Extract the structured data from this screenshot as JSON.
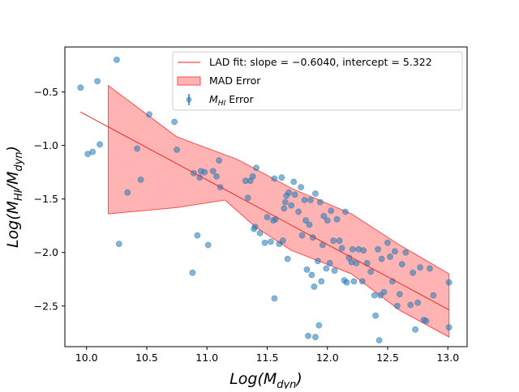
{
  "chart_data": {
    "type": "scatter",
    "title": "",
    "xlabel": "Log(M_dyn)",
    "ylabel": "Log(M_HI/M_dyn)",
    "xlim": [
      9.82,
      13.16
    ],
    "ylim": [
      -2.88,
      -0.08
    ],
    "xticks": [
      10.0,
      10.5,
      11.0,
      11.5,
      12.0,
      12.5,
      13.0
    ],
    "yticks": [
      -2.5,
      -2.0,
      -1.5,
      -1.0,
      -0.5
    ],
    "xtick_labels": [
      "10.0",
      "10.5",
      "11.0",
      "11.5",
      "12.0",
      "12.5",
      "13.0"
    ],
    "ytick_labels": [
      "−2.5",
      "−2.0",
      "−1.5",
      "−1.0",
      "−0.5"
    ],
    "grid": false,
    "legend_position": "top-right",
    "legend": {
      "fit_label": "LAD fit: slope = −0.6040, intercept = 5.322",
      "band_label": "MAD Error",
      "points_label_prefix": "M",
      "points_label_sub": "HI",
      "points_label_suffix": " Error"
    },
    "colors": {
      "points": "#1f77b4",
      "fit_line": "#e8231e",
      "band_fill": "#ff9a9a",
      "band_edge": "#ff4d4d"
    },
    "fit": {
      "slope": -0.604,
      "intercept": 5.322,
      "x_range": [
        9.95,
        13.01
      ]
    },
    "band": {
      "upper": [
        [
          10.18,
          -0.44
        ],
        [
          10.75,
          -0.92
        ],
        [
          11.25,
          -1.13
        ],
        [
          11.7,
          -1.4
        ],
        [
          12.2,
          -1.64
        ],
        [
          12.6,
          -1.93
        ],
        [
          13.01,
          -2.2
        ]
      ],
      "lower": [
        [
          13.01,
          -2.79
        ],
        [
          12.6,
          -2.54
        ],
        [
          12.2,
          -2.2
        ],
        [
          11.7,
          -1.98
        ],
        [
          11.4,
          -1.76
        ],
        [
          11.15,
          -1.51
        ],
        [
          10.75,
          -1.58
        ],
        [
          10.18,
          -1.64
        ]
      ]
    },
    "series": [
      {
        "name": "M_HI Error",
        "points": [
          [
            9.95,
            -0.46
          ],
          [
            10.01,
            -1.08
          ],
          [
            10.05,
            -1.06
          ],
          [
            10.09,
            -0.4
          ],
          [
            10.11,
            -0.99
          ],
          [
            10.25,
            -0.2
          ],
          [
            10.27,
            -1.92
          ],
          [
            10.34,
            -1.44
          ],
          [
            10.42,
            -1.03
          ],
          [
            10.45,
            -1.32
          ],
          [
            10.52,
            -0.71
          ],
          [
            10.73,
            -0.78
          ],
          [
            10.75,
            -1.04
          ],
          [
            10.88,
            -2.19
          ],
          [
            10.89,
            -1.26
          ],
          [
            10.92,
            -1.84
          ],
          [
            10.94,
            -1.3
          ],
          [
            10.95,
            -1.24
          ],
          [
            10.98,
            -1.25
          ],
          [
            11.01,
            -1.93
          ],
          [
            11.05,
            -1.24
          ],
          [
            11.08,
            -1.29
          ],
          [
            11.1,
            -1.14
          ],
          [
            11.11,
            -1.39
          ],
          [
            11.32,
            -1.33
          ],
          [
            11.34,
            -1.49
          ],
          [
            11.36,
            -1.33
          ],
          [
            11.38,
            -1.29
          ],
          [
            11.39,
            -1.78
          ],
          [
            11.4,
            -1.76
          ],
          [
            11.41,
            -1.21
          ],
          [
            11.44,
            -1.82
          ],
          [
            11.48,
            -1.91
          ],
          [
            11.5,
            -1.67
          ],
          [
            11.53,
            -1.9
          ],
          [
            11.55,
            -1.7
          ],
          [
            11.56,
            -1.31
          ],
          [
            11.56,
            -2.43
          ],
          [
            11.57,
            -1.69
          ],
          [
            11.6,
            -1.92
          ],
          [
            11.62,
            -1.3
          ],
          [
            11.63,
            -1.89
          ],
          [
            11.64,
            -1.59
          ],
          [
            11.65,
            -1.53
          ],
          [
            11.66,
            -1.47
          ],
          [
            11.67,
            -2.06
          ],
          [
            11.68,
            -1.44
          ],
          [
            11.7,
            -1.56
          ],
          [
            11.72,
            -1.34
          ],
          [
            11.73,
            -1.46
          ],
          [
            11.76,
            -1.62
          ],
          [
            11.78,
            -1.39
          ],
          [
            11.79,
            -1.84
          ],
          [
            11.81,
            -1.51
          ],
          [
            11.82,
            -1.7
          ],
          [
            11.83,
            -2.16
          ],
          [
            11.84,
            -2.78
          ],
          [
            11.85,
            -1.74
          ],
          [
            11.86,
            -1.51
          ],
          [
            11.87,
            -2.21
          ],
          [
            11.88,
            -1.86
          ],
          [
            11.89,
            -2.32
          ],
          [
            11.9,
            -2.79
          ],
          [
            11.9,
            -1.45
          ],
          [
            11.92,
            -2.08
          ],
          [
            11.93,
            -2.68
          ],
          [
            11.94,
            -1.53
          ],
          [
            11.95,
            -2.27
          ],
          [
            11.96,
            -1.93
          ],
          [
            11.97,
            -1.66
          ],
          [
            11.99,
            -2.15
          ],
          [
            12.0,
            -1.7
          ],
          [
            12.02,
            -2.1
          ],
          [
            12.03,
            -1.61
          ],
          [
            12.05,
            -1.89
          ],
          [
            12.06,
            -2.17
          ],
          [
            12.08,
            -1.69
          ],
          [
            12.1,
            -1.89
          ],
          [
            12.12,
            -1.96
          ],
          [
            12.14,
            -2.26
          ],
          [
            12.15,
            -1.62
          ],
          [
            12.16,
            -2.28
          ],
          [
            12.18,
            -2.05
          ],
          [
            12.2,
            -2.09
          ],
          [
            12.21,
            -1.97
          ],
          [
            12.22,
            -2.27
          ],
          [
            12.24,
            -2.1
          ],
          [
            12.26,
            -1.97
          ],
          [
            12.29,
            -2.27
          ],
          [
            12.3,
            -1.98
          ],
          [
            12.33,
            -2.1
          ],
          [
            12.36,
            -2.18
          ],
          [
            12.39,
            -2.4
          ],
          [
            12.4,
            -2.59
          ],
          [
            12.42,
            -1.97
          ],
          [
            12.43,
            -2.82
          ],
          [
            12.44,
            -2.4
          ],
          [
            12.45,
            -2.06
          ],
          [
            12.47,
            -2.37
          ],
          [
            12.5,
            -1.91
          ],
          [
            12.52,
            -2.04
          ],
          [
            12.54,
            -2.27
          ],
          [
            12.56,
            -1.99
          ],
          [
            12.58,
            -2.5
          ],
          [
            12.6,
            -2.39
          ],
          [
            12.62,
            -2.11
          ],
          [
            12.65,
            -2.0
          ],
          [
            12.69,
            -2.49
          ],
          [
            12.71,
            -2.19
          ],
          [
            12.73,
            -2.72
          ],
          [
            12.75,
            -2.47
          ],
          [
            12.77,
            -2.14
          ],
          [
            12.8,
            -2.63
          ],
          [
            12.82,
            -2.64
          ],
          [
            12.85,
            -2.15
          ],
          [
            12.88,
            -2.4
          ],
          [
            13.01,
            -2.28
          ],
          [
            13.01,
            -2.7
          ]
        ]
      }
    ]
  }
}
